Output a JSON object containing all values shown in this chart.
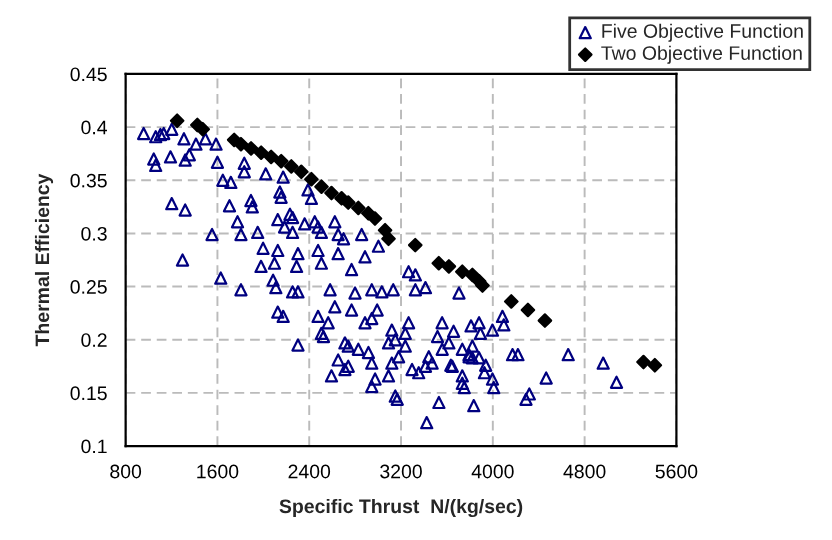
{
  "chart_data": {
    "type": "scatter",
    "xlabel": "Specific Thrust  N/(kg/sec)",
    "ylabel": "Thermal Efficiency",
    "xlim": [
      800,
      5600
    ],
    "xticks": [
      800,
      1600,
      2400,
      3200,
      4000,
      4800,
      5600
    ],
    "ylim": [
      0.1,
      0.45
    ],
    "yticks": [
      0.1,
      0.15,
      0.2,
      0.25,
      0.3,
      0.35,
      0.4,
      0.45
    ],
    "grid": true,
    "legend": "top right",
    "series": [
      {
        "name": "Five Objective Function",
        "color": "#000080",
        "marker": "triangle",
        "x": [
          957,
          1062,
          1103,
          1132,
          1202,
          1308,
          1413,
          1495,
          1588,
          1045,
          1062,
          1191,
          1319,
          1355,
          1600,
          1834,
          1834,
          2021,
          2173,
          1647,
          1717,
          1202,
          1319,
          1705,
          1892,
          1904,
          2144,
          2155,
          2389,
          2419,
          1775,
          1951,
          2126,
          2232,
          2255,
          2360,
          2448,
          2477,
          2623,
          2652,
          2699,
          1553,
          1805,
          2255,
          2185,
          2506,
          2857,
          1296,
          1998,
          2126,
          2302,
          2477,
          2652,
          3003,
          1980,
          2097,
          2290,
          2506,
          2769,
          2886,
          1629,
          1805,
          2085,
          2109,
          2255,
          2302,
          2582,
          2799,
          2945,
          3033,
          3132,
          3266,
          3325,
          3325,
          3413,
          3705,
          2126,
          2173,
          2302,
          2477,
          2506,
          2524,
          2565,
          2623,
          2711,
          2740,
          2769,
          2886,
          2945,
          2992,
          3120,
          3091,
          3150,
          3237,
          3266,
          2652,
          2740,
          2594,
          2711,
          2828,
          2916,
          2945,
          2974,
          2945,
          3091,
          3120,
          3179,
          3237,
          3296,
          3354,
          3413,
          3442,
          3471,
          3518,
          3559,
          3617,
          3647,
          3734,
          3734,
          3793,
          3822,
          3834,
          3530,
          3424,
          3150,
          3167,
          3810,
          4084,
          4096,
          3997,
          3892,
          3880,
          3880,
          3938,
          3927,
          3997,
          4008,
          4172,
          4219,
          4465,
          4289,
          4318,
          4657,
          4962,
          5078,
          3558,
          3658,
          3734,
          3792,
          3821,
          3634,
          3751
        ],
        "values": [
          0.394,
          0.391,
          0.393,
          0.394,
          0.398,
          0.389,
          0.384,
          0.389,
          0.384,
          0.37,
          0.364,
          0.372,
          0.369,
          0.374,
          0.367,
          0.366,
          0.358,
          0.356,
          0.353,
          0.35,
          0.348,
          0.328,
          0.322,
          0.326,
          0.331,
          0.325,
          0.339,
          0.334,
          0.341,
          0.333,
          0.311,
          0.301,
          0.313,
          0.318,
          0.315,
          0.309,
          0.311,
          0.306,
          0.311,
          0.299,
          0.295,
          0.299,
          0.299,
          0.301,
          0.306,
          0.301,
          0.299,
          0.275,
          0.286,
          0.284,
          0.281,
          0.284,
          0.281,
          0.288,
          0.269,
          0.272,
          0.269,
          0.272,
          0.266,
          0.278,
          0.258,
          0.247,
          0.256,
          0.249,
          0.245,
          0.245,
          0.247,
          0.244,
          0.247,
          0.245,
          0.247,
          0.264,
          0.261,
          0.247,
          0.249,
          0.244,
          0.226,
          0.222,
          0.195,
          0.222,
          0.206,
          0.203,
          0.216,
          0.231,
          0.197,
          0.194,
          0.228,
          0.216,
          0.22,
          0.228,
          0.209,
          0.197,
          0.2,
          0.206,
          0.216,
          0.181,
          0.175,
          0.166,
          0.172,
          0.191,
          0.188,
          0.178,
          0.163,
          0.156,
          0.166,
          0.178,
          0.184,
          0.194,
          0.172,
          0.169,
          0.175,
          0.184,
          0.178,
          0.203,
          0.191,
          0.197,
          0.175,
          0.166,
          0.159,
          0.184,
          0.194,
          0.138,
          0.141,
          0.122,
          0.147,
          0.144,
          0.213,
          0.222,
          0.214,
          0.209,
          0.206,
          0.216,
          0.183,
          0.176,
          0.169,
          0.163,
          0.155,
          0.186,
          0.186,
          0.164,
          0.144,
          0.149,
          0.186,
          0.178,
          0.16,
          0.216,
          0.208,
          0.191,
          0.186,
          0.183,
          0.176,
          0.155
        ]
      },
      {
        "name": "Two Objective Function",
        "color": "#000000",
        "marker": "diamond",
        "x": [
          1249,
          1425,
          1472,
          1746,
          1805,
          1893,
          1981,
          2068,
          2156,
          2244,
          2331,
          2419,
          2507,
          2594,
          2682,
          2740,
          2828,
          2915,
          2973,
          3061,
          3091,
          3324,
          3529,
          3617,
          3734,
          3822,
          3881,
          3910,
          4161,
          4306,
          4454,
          5313,
          5412
        ],
        "values": [
          0.406,
          0.402,
          0.398,
          0.388,
          0.384,
          0.38,
          0.376,
          0.372,
          0.368,
          0.363,
          0.358,
          0.351,
          0.344,
          0.338,
          0.333,
          0.329,
          0.324,
          0.319,
          0.314,
          0.303,
          0.295,
          0.289,
          0.272,
          0.269,
          0.264,
          0.261,
          0.255,
          0.251,
          0.236,
          0.228,
          0.218,
          0.179,
          0.176
        ]
      }
    ]
  }
}
